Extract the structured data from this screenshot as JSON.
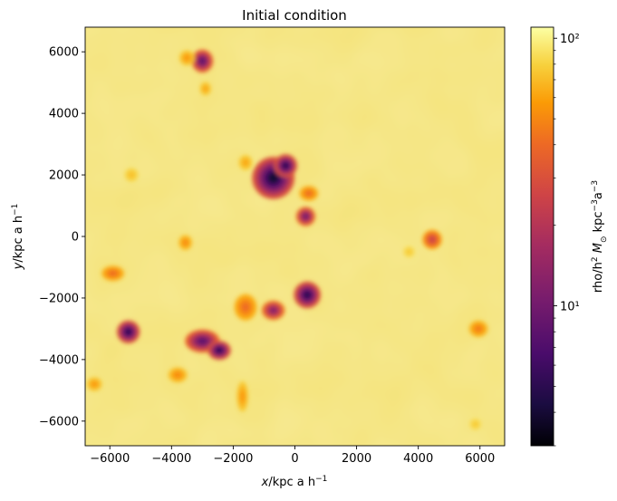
{
  "chart_data": {
    "type": "heatmap",
    "title": "Initial condition",
    "xlabel": "x/kpc a h⁻¹",
    "ylabel": "y/kpc a h⁻¹",
    "xlim": [
      -6800,
      6800
    ],
    "ylim": [
      -6800,
      6800
    ],
    "xticks": [
      -6000,
      -4000,
      -2000,
      0,
      2000,
      4000,
      6000
    ],
    "yticks": [
      -6000,
      -4000,
      -2000,
      0,
      2000,
      4000,
      6000
    ],
    "xtick_labels": [
      "−6000",
      "−4000",
      "−2000",
      "0",
      "2000",
      "4000",
      "6000"
    ],
    "ytick_labels": [
      "−6000",
      "−4000",
      "−2000",
      "0",
      "2000",
      "4000",
      "6000"
    ],
    "grid": false,
    "colormap": "inferno",
    "colorbar": {
      "label": "rho/h² M⊙ kpc⁻³ a⁻³",
      "scale": "log",
      "range": [
        3,
        110
      ],
      "ticks": [
        10,
        100
      ],
      "tick_labels": [
        "10¹",
        "10²"
      ]
    },
    "background_value": 95,
    "overdense_regions": [
      {
        "x": -700,
        "y": 1900,
        "rx": 550,
        "ry": 550,
        "min_value": 4
      },
      {
        "x": -300,
        "y": 2300,
        "rx": 300,
        "ry": 300,
        "min_value": 5
      },
      {
        "x": 450,
        "y": 1400,
        "rx": 250,
        "ry": 200,
        "min_value": 40
      },
      {
        "x": 350,
        "y": 650,
        "rx": 250,
        "ry": 250,
        "min_value": 10
      },
      {
        "x": 400,
        "y": -1900,
        "rx": 350,
        "ry": 350,
        "min_value": 5
      },
      {
        "x": -700,
        "y": -2400,
        "rx": 300,
        "ry": 250,
        "min_value": 12
      },
      {
        "x": -1600,
        "y": -2300,
        "rx": 300,
        "ry": 350,
        "min_value": 40
      },
      {
        "x": -3000,
        "y": -3400,
        "rx": 450,
        "ry": 300,
        "min_value": 8
      },
      {
        "x": -2450,
        "y": -3700,
        "rx": 300,
        "ry": 250,
        "min_value": 5
      },
      {
        "x": -5400,
        "y": -3100,
        "rx": 300,
        "ry": 300,
        "min_value": 5
      },
      {
        "x": -5900,
        "y": -1200,
        "rx": 300,
        "ry": 200,
        "min_value": 40
      },
      {
        "x": -3800,
        "y": -4500,
        "rx": 250,
        "ry": 200,
        "min_value": 50
      },
      {
        "x": -1700,
        "y": -5200,
        "rx": 150,
        "ry": 400,
        "min_value": 55
      },
      {
        "x": -6500,
        "y": -4800,
        "rx": 200,
        "ry": 180,
        "min_value": 55
      },
      {
        "x": -3000,
        "y": 5700,
        "rx": 280,
        "ry": 300,
        "min_value": 8
      },
      {
        "x": -3500,
        "y": 5800,
        "rx": 200,
        "ry": 200,
        "min_value": 55
      },
      {
        "x": -2900,
        "y": 4800,
        "rx": 150,
        "ry": 180,
        "min_value": 60
      },
      {
        "x": -3550,
        "y": -200,
        "rx": 180,
        "ry": 200,
        "min_value": 50
      },
      {
        "x": 4450,
        "y": -100,
        "rx": 250,
        "ry": 250,
        "min_value": 25
      },
      {
        "x": 5950,
        "y": -3000,
        "rx": 250,
        "ry": 220,
        "min_value": 45
      },
      {
        "x": -1600,
        "y": 2400,
        "rx": 180,
        "ry": 200,
        "min_value": 60
      },
      {
        "x": -5300,
        "y": 2000,
        "rx": 180,
        "ry": 180,
        "min_value": 70
      },
      {
        "x": 3700,
        "y": -500,
        "rx": 150,
        "ry": 150,
        "min_value": 75
      },
      {
        "x": 5850,
        "y": -6100,
        "rx": 150,
        "ry": 150,
        "min_value": 75
      }
    ]
  }
}
